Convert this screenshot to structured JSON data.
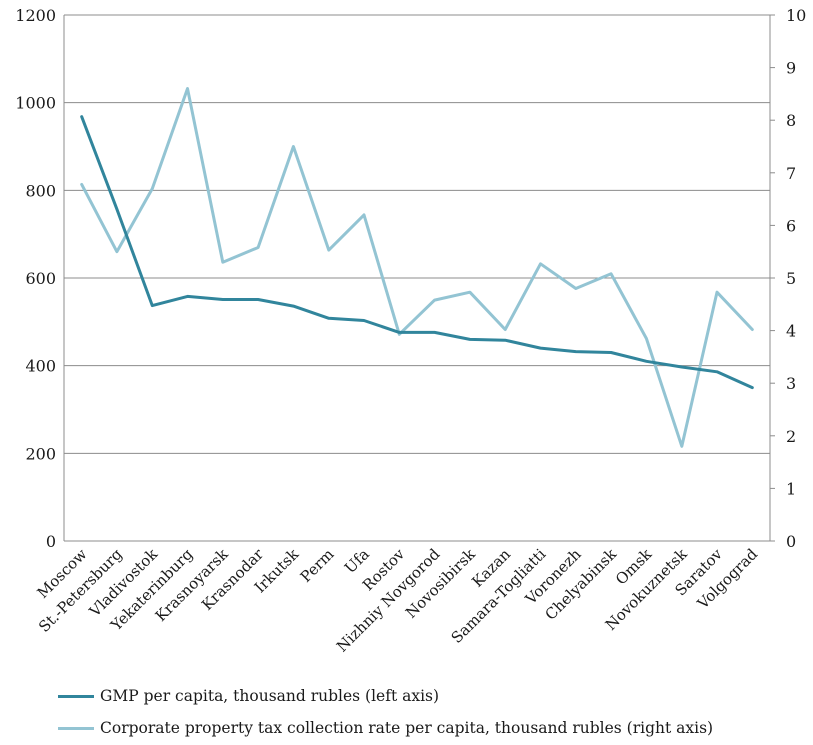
{
  "chart_data": {
    "type": "line",
    "categories": [
      "Moscow",
      "St.-Petersburg",
      "Vladivostok",
      "Yekaterinburg",
      "Krasnoyarsk",
      "Krasnodar",
      "Irkutsk",
      "Perm",
      "Ufa",
      "Rostov",
      "Nizhniy Novgorod",
      "Novosibirsk",
      "Kazan",
      "Samara-Togliatti",
      "Voronezh",
      "Chelyabinsk",
      "Omsk",
      "Novokuznetsk",
      "Saratov",
      "Volgograd"
    ],
    "y_left": {
      "min": 0,
      "max": 1200,
      "step": 200,
      "ticks": [
        "0",
        "200",
        "400",
        "600",
        "800",
        "1000",
        "1200"
      ]
    },
    "y_right": {
      "min": 0,
      "max": 10,
      "step": 1,
      "ticks": [
        "0",
        "1",
        "2",
        "3",
        "4",
        "5",
        "6",
        "7",
        "8",
        "9",
        "10"
      ]
    },
    "grid": "horizontal",
    "legend_position": "bottom",
    "series": [
      {
        "name": "GMP per capita, thousand rubles (left axis)",
        "axis": "left",
        "color": "#31859c",
        "values": [
          968,
          757,
          537,
          558,
          551,
          551,
          536,
          508,
          503,
          476,
          476,
          460,
          458,
          440,
          432,
          430,
          410,
          397,
          386,
          350
        ]
      },
      {
        "name": "Corporate property tax collection rate per capita, thousand rubles (right axis)",
        "axis": "right",
        "color": "#93c4d3",
        "values": [
          6.78,
          5.5,
          6.7,
          8.6,
          5.3,
          5.58,
          7.5,
          5.53,
          6.2,
          3.93,
          4.58,
          4.73,
          4.02,
          5.27,
          4.8,
          5.08,
          3.85,
          1.8,
          4.73,
          4.02
        ]
      }
    ]
  }
}
